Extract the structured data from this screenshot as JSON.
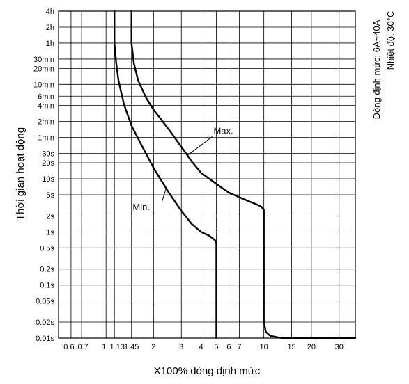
{
  "chart_data": {
    "type": "line",
    "xlabel": "X100% dòng dịnh mức",
    "ylabel": "Thời gian hoạt động",
    "side_notes": [
      "Dòng định mức: 6A~40A",
      "Nhiệt độ: 30°C"
    ],
    "x_scale": "log",
    "y_scale": "log",
    "xlim": [
      0.5,
      38
    ],
    "ylim_seconds": [
      0.01,
      14400
    ],
    "grid": true,
    "x_ticks": [
      {
        "v": 0.6,
        "label": "0.6"
      },
      {
        "v": 0.7,
        "label": "0.7"
      },
      {
        "v": 1,
        "label": "1"
      },
      {
        "v": 1.13,
        "label": "1.13"
      },
      {
        "v": 1.45,
        "label": "1.45"
      },
      {
        "v": 2,
        "label": "2"
      },
      {
        "v": 3,
        "label": "3"
      },
      {
        "v": 4,
        "label": "4"
      },
      {
        "v": 5,
        "label": "5"
      },
      {
        "v": 6,
        "label": "6"
      },
      {
        "v": 7,
        "label": "7"
      },
      {
        "v": 10,
        "label": "10"
      },
      {
        "v": 15,
        "label": "15"
      },
      {
        "v": 20,
        "label": "20"
      },
      {
        "v": 30,
        "label": "30"
      }
    ],
    "y_ticks": [
      {
        "v": 14400,
        "label": "4h"
      },
      {
        "v": 7200,
        "label": "2h"
      },
      {
        "v": 3600,
        "label": "1h"
      },
      {
        "v": 1800,
        "label": "30min"
      },
      {
        "v": 1200,
        "label": "20min"
      },
      {
        "v": 600,
        "label": "10min"
      },
      {
        "v": 360,
        "label": "6min"
      },
      {
        "v": 240,
        "label": "4min"
      },
      {
        "v": 120,
        "label": "2min"
      },
      {
        "v": 60,
        "label": "1min"
      },
      {
        "v": 30,
        "label": "30s"
      },
      {
        "v": 20,
        "label": "20s"
      },
      {
        "v": 10,
        "label": "10s"
      },
      {
        "v": 5,
        "label": "5s"
      },
      {
        "v": 2,
        "label": "2s"
      },
      {
        "v": 1,
        "label": "1s"
      },
      {
        "v": 0.5,
        "label": "0.5s"
      },
      {
        "v": 0.2,
        "label": "0.2s"
      },
      {
        "v": 0.1,
        "label": "0.1s"
      },
      {
        "v": 0.05,
        "label": "0.05s"
      },
      {
        "v": 0.02,
        "label": "0.02s"
      },
      {
        "v": 0.01,
        "label": "0.01s"
      }
    ],
    "series": [
      {
        "name": "Min.",
        "points": [
          [
            1.13,
            14400
          ],
          [
            1.13,
            3600
          ],
          [
            1.16,
            1500
          ],
          [
            1.2,
            700
          ],
          [
            1.3,
            250
          ],
          [
            1.45,
            100
          ],
          [
            1.7,
            40
          ],
          [
            2.0,
            16
          ],
          [
            2.5,
            5.5
          ],
          [
            3.0,
            2.5
          ],
          [
            3.5,
            1.4
          ],
          [
            4.0,
            1.0
          ],
          [
            4.5,
            0.85
          ],
          [
            4.9,
            0.7
          ],
          [
            5.0,
            0.62
          ],
          [
            5.0,
            0.01
          ]
        ]
      },
      {
        "name": "Max.",
        "points": [
          [
            1.45,
            14400
          ],
          [
            1.45,
            3600
          ],
          [
            1.5,
            1500
          ],
          [
            1.6,
            700
          ],
          [
            1.8,
            330
          ],
          [
            2.0,
            200
          ],
          [
            2.5,
            85
          ],
          [
            3.0,
            40
          ],
          [
            3.5,
            21
          ],
          [
            4.0,
            13
          ],
          [
            5.0,
            8
          ],
          [
            6.0,
            5.5
          ],
          [
            7.0,
            4.5
          ],
          [
            8.0,
            3.8
          ],
          [
            9.0,
            3.3
          ],
          [
            9.6,
            3.0
          ],
          [
            10.0,
            2.6
          ],
          [
            10.0,
            0.02
          ],
          [
            10.3,
            0.013
          ],
          [
            11.0,
            0.011
          ],
          [
            13.0,
            0.01
          ],
          [
            38.0,
            0.01
          ]
        ]
      }
    ],
    "annotations": [
      {
        "text": "Max.",
        "anchor": [
          3.3,
          28
        ],
        "label_at": [
          4.8,
          70
        ]
      },
      {
        "text": "Min.",
        "anchor": [
          2.4,
          6.5
        ],
        "label_at": [
          2.0,
          2.9
        ]
      }
    ]
  }
}
